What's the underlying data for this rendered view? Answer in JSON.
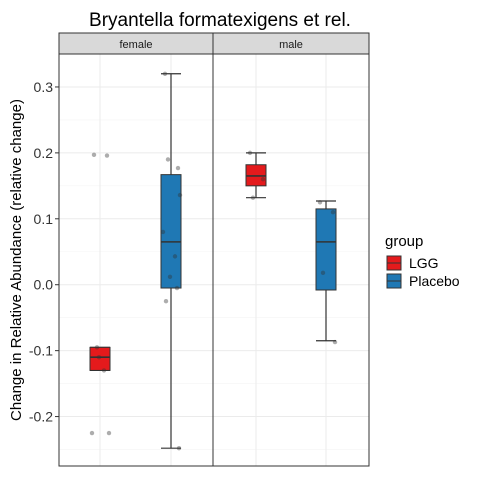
{
  "chart_data": {
    "type": "box",
    "title": "Bryantella formatexigens et rel.",
    "ylabel": "Change in Relative Abundance (relative change)",
    "xlabel": "",
    "ylim": [
      -0.275,
      0.35
    ],
    "y_ticks": [
      -0.2,
      -0.1,
      0.0,
      0.1,
      0.2,
      0.3
    ],
    "y_tick_labels": [
      "-0.2",
      "-0.1",
      "0.0",
      "0.1",
      "0.2",
      "0.3"
    ],
    "facets": [
      "female",
      "male"
    ],
    "legend": {
      "title": "group",
      "position": "right",
      "entries": [
        {
          "name": "LGG",
          "color": "#e41a1c"
        },
        {
          "name": "Placebo",
          "color": "#1f78b4"
        }
      ]
    },
    "grid": true,
    "boxes": [
      {
        "facet": "female",
        "group": "LGG",
        "min": -0.13,
        "q1": -0.13,
        "median": -0.11,
        "q3": -0.095,
        "max": -0.095
      },
      {
        "facet": "female",
        "group": "Placebo",
        "min": -0.248,
        "q1": -0.005,
        "median": 0.065,
        "q3": 0.167,
        "max": 0.32
      },
      {
        "facet": "male",
        "group": "LGG",
        "min": 0.132,
        "q1": 0.15,
        "median": 0.165,
        "q3": 0.182,
        "max": 0.2
      },
      {
        "facet": "male",
        "group": "Placebo",
        "min": -0.085,
        "q1": -0.008,
        "median": 0.065,
        "q3": 0.115,
        "max": 0.127
      }
    ],
    "points": [
      {
        "facet": "female",
        "group": "LGG",
        "values": [
          0.197,
          0.196,
          -0.095,
          -0.225,
          -0.225,
          -0.13,
          -0.11
        ]
      },
      {
        "facet": "female",
        "group": "Placebo",
        "values": [
          0.32,
          0.177,
          0.19,
          0.136,
          0.08,
          0.043,
          0.012,
          -0.005,
          -0.025,
          -0.248
        ]
      },
      {
        "facet": "male",
        "group": "LGG",
        "values": [
          0.2,
          0.16,
          0.132
        ]
      },
      {
        "facet": "male",
        "group": "Placebo",
        "values": [
          0.125,
          0.11,
          0.018,
          -0.087
        ]
      }
    ]
  }
}
